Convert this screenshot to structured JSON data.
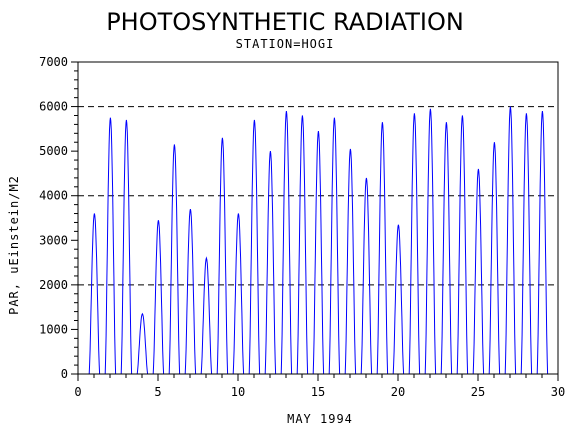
{
  "chart_data": {
    "type": "line",
    "title": "PHOTOSYNTHETIC RADIATION",
    "subtitle": "STATION=HOGI",
    "xlabel": "MAY 1994",
    "ylabel": "PAR, uEinstein/M2",
    "xlim": [
      0,
      30
    ],
    "ylim": [
      0,
      7000
    ],
    "x_ticks": [
      0,
      5,
      10,
      15,
      20,
      25,
      30
    ],
    "y_ticks": [
      0,
      1000,
      2000,
      3000,
      4000,
      5000,
      6000,
      7000
    ],
    "reference_lines": [
      2000,
      4000,
      6000
    ],
    "line_color": "#0000ff",
    "series": [
      {
        "daily_peaks": [
          {
            "day": 1,
            "peak": 3600
          },
          {
            "day": 2,
            "peak": 5750
          },
          {
            "day": 3,
            "peak": 5700
          },
          {
            "day": 4,
            "peak": 1350
          },
          {
            "day": 5,
            "peak": 3450
          },
          {
            "day": 6,
            "peak": 5150
          },
          {
            "day": 7,
            "peak": 3700
          },
          {
            "day": 8,
            "peak": 2600
          },
          {
            "day": 9,
            "peak": 5300
          },
          {
            "day": 10,
            "peak": 3600
          },
          {
            "day": 11,
            "peak": 5700
          },
          {
            "day": 12,
            "peak": 5000
          },
          {
            "day": 13,
            "peak": 5900
          },
          {
            "day": 14,
            "peak": 5800
          },
          {
            "day": 15,
            "peak": 5450
          },
          {
            "day": 16,
            "peak": 5750
          },
          {
            "day": 17,
            "peak": 5050
          },
          {
            "day": 18,
            "peak": 4400
          },
          {
            "day": 19,
            "peak": 5650
          },
          {
            "day": 20,
            "peak": 3350
          },
          {
            "day": 21,
            "peak": 5850
          },
          {
            "day": 22,
            "peak": 5950
          },
          {
            "day": 23,
            "peak": 5650
          },
          {
            "day": 24,
            "peak": 5800
          },
          {
            "day": 25,
            "peak": 4600
          },
          {
            "day": 26,
            "peak": 5200
          },
          {
            "day": 27,
            "peak": 6000
          },
          {
            "day": 28,
            "peak": 5850
          },
          {
            "day": 29,
            "peak": 5900
          }
        ]
      }
    ]
  }
}
